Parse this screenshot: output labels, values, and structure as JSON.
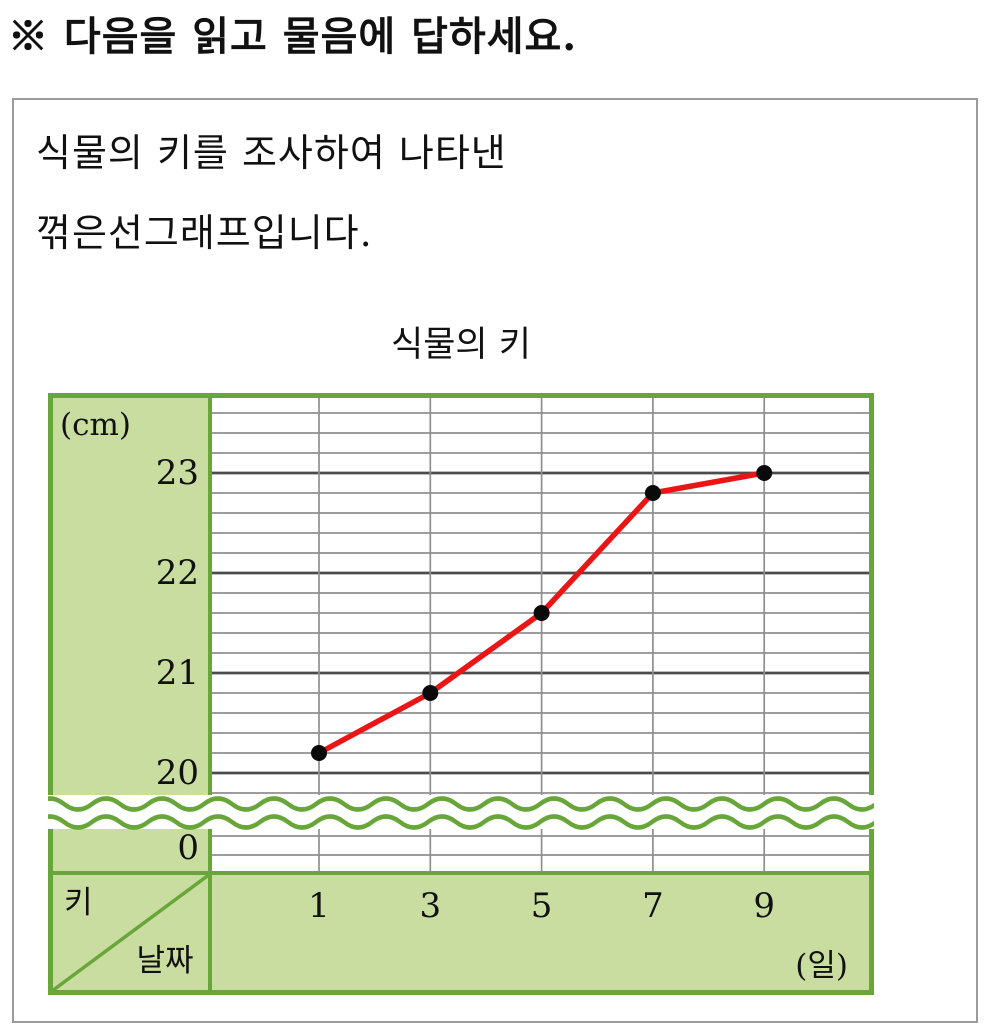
{
  "page": {
    "instruction": "※ 다음을 읽고 물음에 답하세요.",
    "description_line1": "식물의 키를 조사하여 나타낸",
    "description_line2": "꺾은선그래프입니다."
  },
  "chart_data": {
    "type": "line",
    "title": "식물의 키",
    "xlabel": "날짜 (일)",
    "ylabel": "키 (cm)",
    "x": [
      1,
      3,
      5,
      7,
      9
    ],
    "values": [
      20.2,
      20.8,
      21.6,
      22.8,
      23.0
    ],
    "x_tick_labels": [
      "1",
      "3",
      "5",
      "7",
      "9"
    ],
    "y_tick_labels": [
      "23",
      "22",
      "21",
      "20"
    ],
    "y_tick_values": [
      23,
      22,
      21,
      20
    ],
    "y_unit_label": "(cm)",
    "x_unit_label": "(일)",
    "origin_label": "0",
    "corner_row_label": "키",
    "corner_col_label": "날짜",
    "y_major_step": 1,
    "y_minor_step": 0.2,
    "visible_y_range": [
      19.8,
      23.8
    ],
    "axis_break": true,
    "grid": true,
    "legend": "none",
    "colors": {
      "line": "#ec1515",
      "point": "#0a0a0a",
      "panel_fill": "#cadda0",
      "frame_green": "#68a639",
      "grid_minor": "#8f8f8f",
      "grid_major": "#4c4c4c",
      "outer_box_border": "#9b9b9b",
      "text": "#111111"
    }
  }
}
